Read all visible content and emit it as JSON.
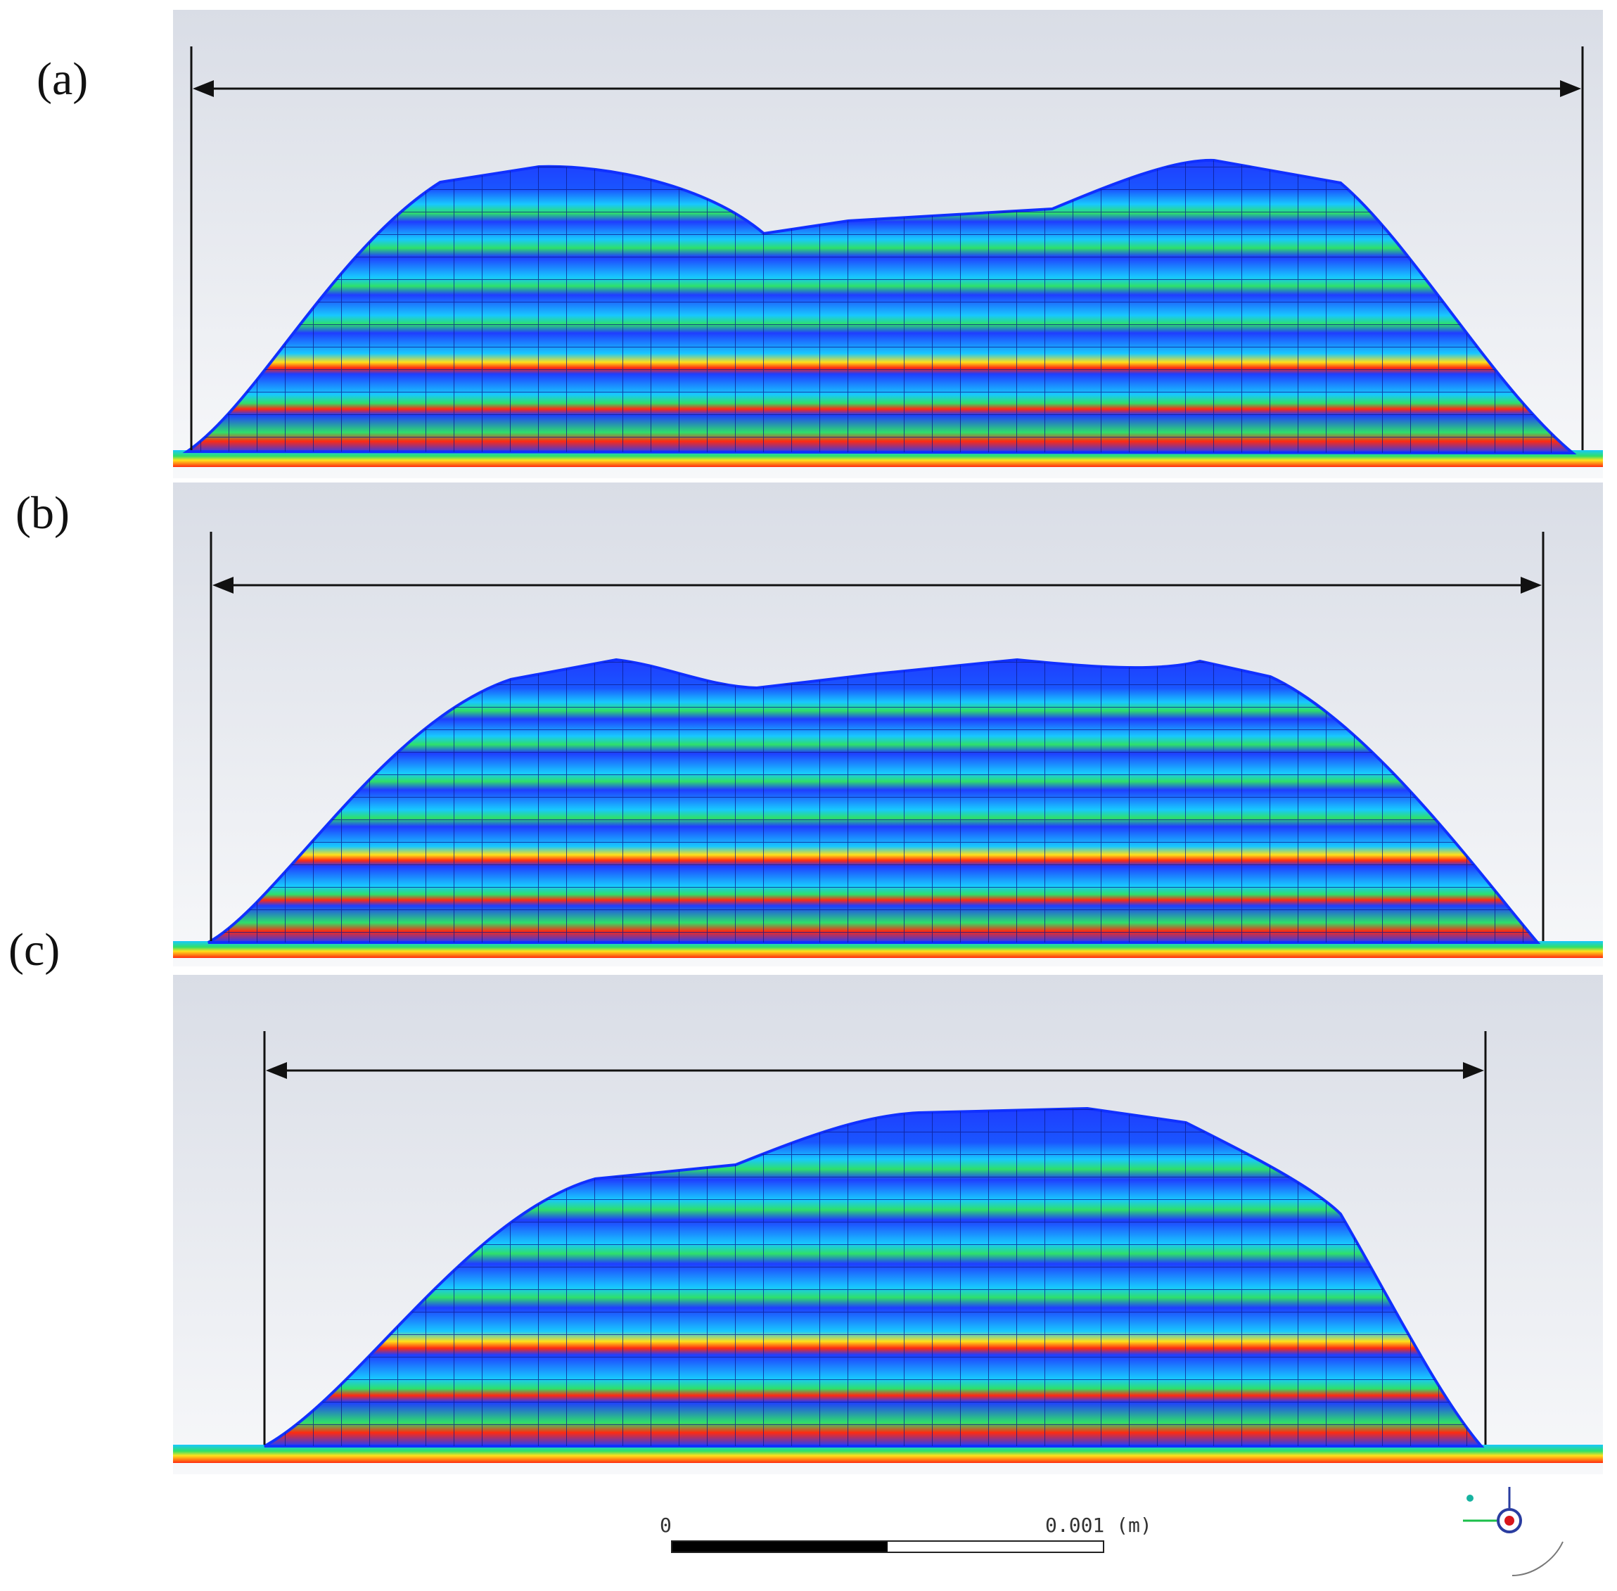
{
  "panels": [
    {
      "label": "(a)"
    },
    {
      "label": "(b)"
    },
    {
      "label": "(c)"
    }
  ],
  "scale_bar": {
    "start_label": "0",
    "end_label": "0.001 (m)"
  },
  "colors": {
    "background_top": "#d9dde6",
    "background_bottom": "#f7f8fa",
    "mesh_blue": "#1f3dff",
    "mesh_cyan": "#18c8ff",
    "mesh_green": "#2ee06a",
    "mesh_yellow": "#ffe11a",
    "mesh_red": "#ff2a10"
  },
  "orientation_triad": {
    "icon": "axis-triad-icon"
  }
}
